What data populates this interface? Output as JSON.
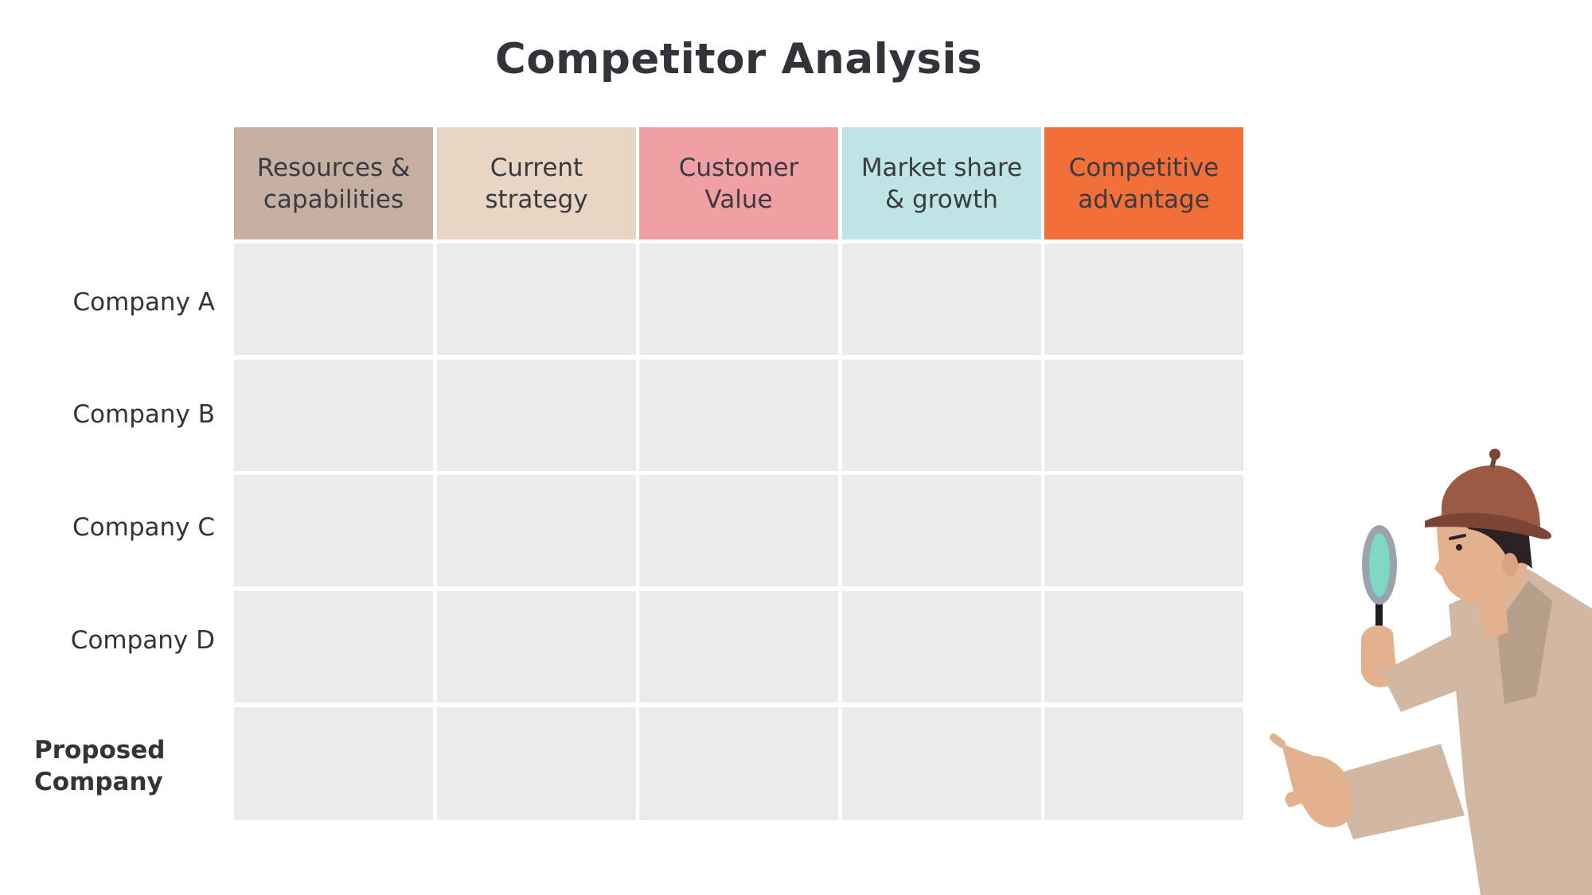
{
  "title": "Competitor Analysis",
  "columns": [
    {
      "label": "Resources &\ncapabilities",
      "color": "#c5b0a1"
    },
    {
      "label": "Current\nstrategy",
      "color": "#e8d5c3"
    },
    {
      "label": "Customer\nValue",
      "color": "#f0a0a2"
    },
    {
      "label": "Market share\n& growth",
      "color": "#bee4e6"
    },
    {
      "label": "Competitive\nadvantage",
      "color": "#f26f39"
    }
  ],
  "rows": [
    {
      "label": "Company A"
    },
    {
      "label": "Company B"
    },
    {
      "label": "Company C"
    },
    {
      "label": "Company D"
    },
    {
      "label": "Proposed\nCompany"
    }
  ],
  "colors": {
    "cell": "#ebebeb",
    "title": "#33333a"
  },
  "illustration": "detective-with-magnifying-glass"
}
